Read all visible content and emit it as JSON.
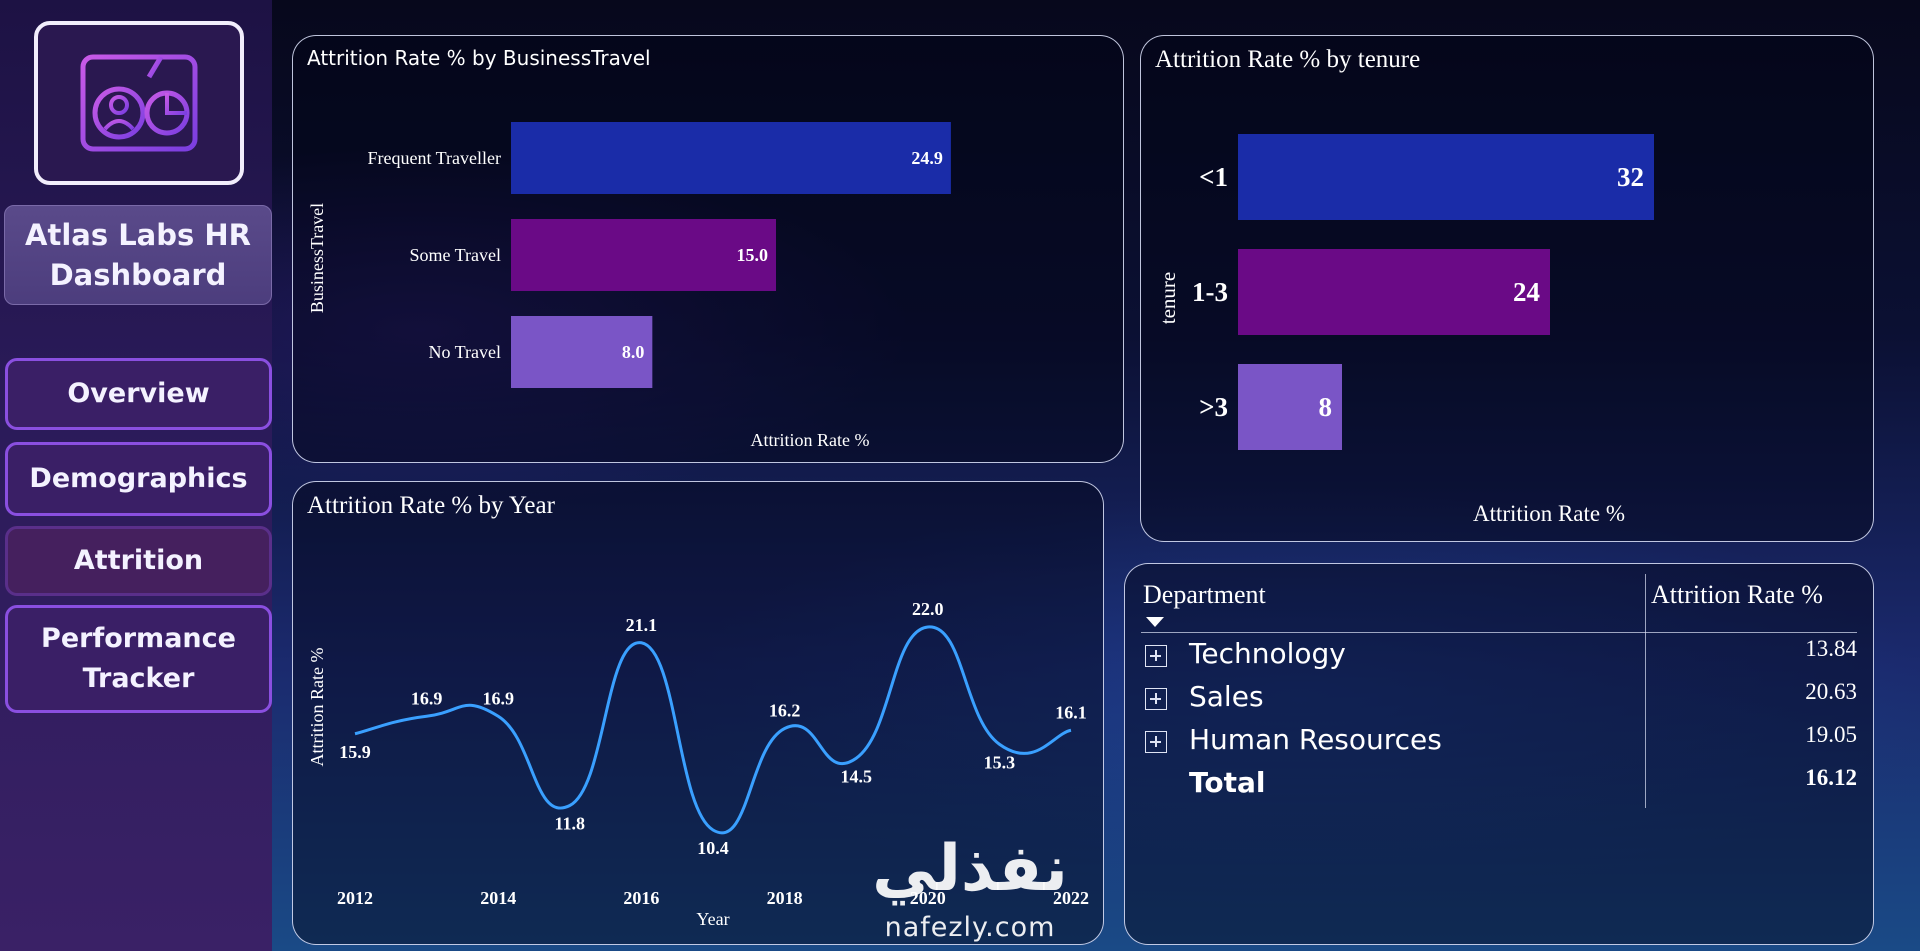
{
  "sidebar": {
    "logo_icon": "dashboard-profile-chart-icon",
    "title": "Atlas Labs HR Dashboard",
    "nav": [
      {
        "label": "Overview"
      },
      {
        "label": "Demographics"
      },
      {
        "label": "Attrition"
      },
      {
        "label": "Performance Tracker"
      }
    ]
  },
  "colors": {
    "bar_primary": "#1a2ca8",
    "bar_secondary": "#6a0a86",
    "bar_tertiary": "#7a55c6",
    "line": "#3aa0ff"
  },
  "charts": {
    "business_travel": {
      "title": "Attrition Rate % by BusinessTravel",
      "chart_data": {
        "type": "bar",
        "orientation": "horizontal",
        "ylabel": "BusinessTravel",
        "xlabel": "Attrition Rate %",
        "categories": [
          "Frequent Traveller",
          "Some Travel",
          "No Travel"
        ],
        "values": [
          24.9,
          15.0,
          8.0
        ],
        "value_labels": [
          "24.9",
          "15.0",
          "8.0"
        ],
        "xlim": [
          0,
          30
        ]
      }
    },
    "tenure": {
      "title": "Attrition Rate % by tenure",
      "chart_data": {
        "type": "bar",
        "orientation": "horizontal",
        "ylabel": "tenure",
        "xlabel": "Attrition Rate %",
        "categories": [
          "<1",
          "1-3",
          ">3"
        ],
        "values": [
          32,
          24,
          8
        ],
        "value_labels": [
          "32",
          "24",
          "8"
        ],
        "xlim": [
          0,
          40
        ]
      }
    },
    "year": {
      "title": "Attrition Rate % by Year",
      "chart_data": {
        "type": "line",
        "ylabel": "Attrition Rate %",
        "xlabel": "Year",
        "x": [
          2012,
          2013,
          2014,
          2015,
          2016,
          2017,
          2018,
          2019,
          2020,
          2021,
          2022
        ],
        "values": [
          15.9,
          16.9,
          16.9,
          11.8,
          21.1,
          10.4,
          16.2,
          14.5,
          22.0,
          15.3,
          16.1
        ],
        "value_labels": [
          "15.9",
          "16.9",
          "16.9",
          "11.8",
          "21.1",
          "10.4",
          "16.2",
          "14.5",
          "22.0",
          "15.3",
          "16.1"
        ],
        "x_ticks": [
          "2012",
          "2014",
          "2016",
          "2018",
          "2020",
          "2022"
        ],
        "ylim": [
          8,
          24
        ]
      }
    }
  },
  "table": {
    "headers": {
      "department": "Department",
      "rate": "Attrition Rate %"
    },
    "rows": [
      {
        "dept": "Technology",
        "rate": "13.84"
      },
      {
        "dept": "Sales",
        "rate": "20.63"
      },
      {
        "dept": "Human Resources",
        "rate": "19.05"
      }
    ],
    "total": {
      "label": "Total",
      "rate": "16.12"
    }
  },
  "watermark": {
    "arabic": "نفذلي",
    "url": "nafezly.com"
  }
}
